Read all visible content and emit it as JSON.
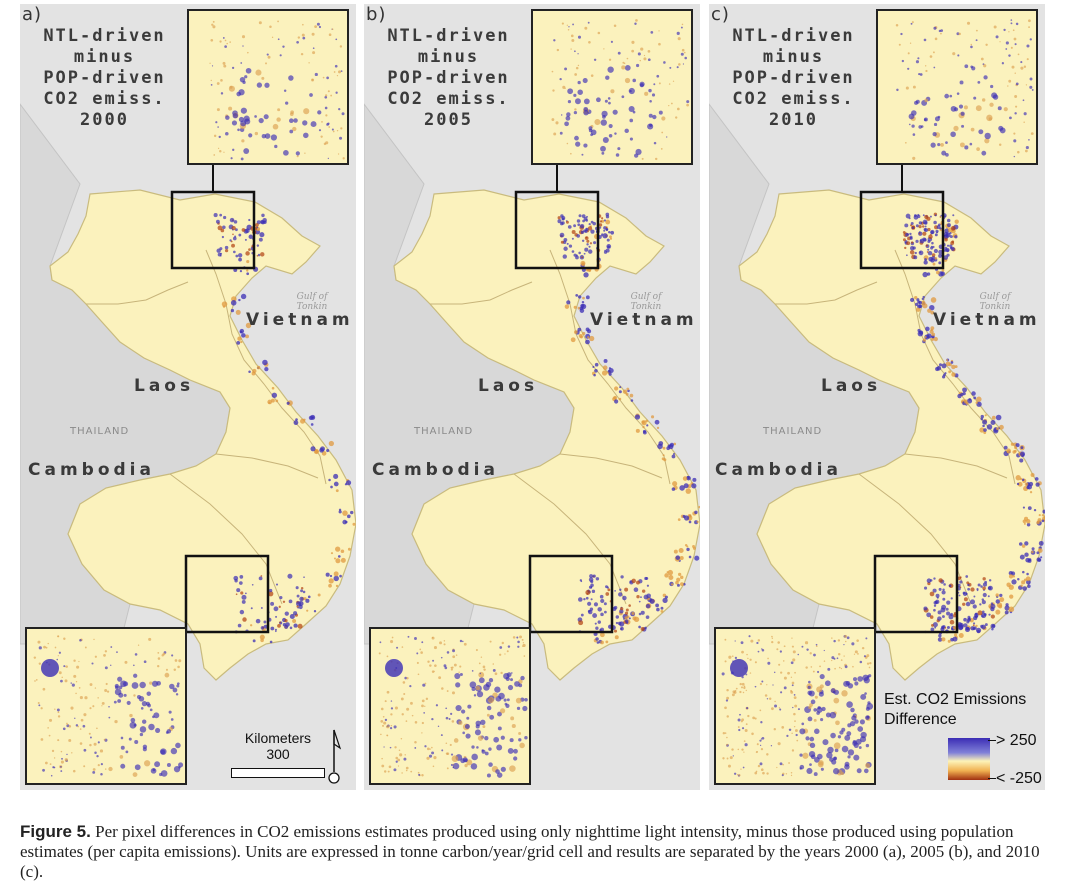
{
  "panels": [
    {
      "label": "a)",
      "title": "NTL-driven\nminus\nPOP-driven\nCO2 emiss.\n2000"
    },
    {
      "label": "b)",
      "title": "NTL-driven\nminus\nPOP-driven\nCO2 emiss.\n2005"
    },
    {
      "label": "c)",
      "title": "NTL-driven\nminus\nPOP-driven\nCO2 emiss.\n2010"
    }
  ],
  "places": {
    "vietnam": "Vietnam",
    "laos": "Laos",
    "cambodia": "Cambodia",
    "thailand": "THAILAND",
    "gulf": "Gulf of Tonkin"
  },
  "scalebar": {
    "title": "Kilometers",
    "value": "300"
  },
  "legend": {
    "title": "Est. CO2 Emissions Difference",
    "high": "> 250",
    "low": "< -250"
  },
  "colors": {
    "land": "#fbf2bd",
    "sea": "#e3e3e3",
    "positive": "#3b2db5",
    "negative": "#b04010"
  },
  "caption": {
    "figure": "Figure 5.",
    "text": "Per pixel differences in CO2 emissions estimates produced using only nighttime light intensity, minus those produced using population estimates (per capita emissions). Units are expressed in tonne carbon/year/grid cell and results are separated by the years 2000 (a), 2005 (b), and 2010 (c)."
  }
}
